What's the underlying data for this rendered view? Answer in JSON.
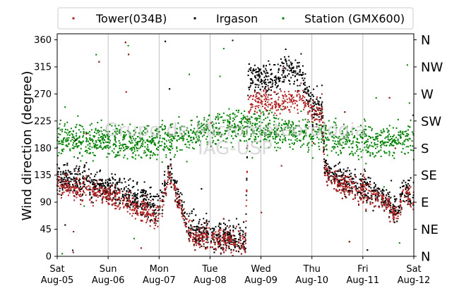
{
  "chart_data": {
    "type": "scatter",
    "title": "",
    "xlabel": "",
    "ylabel": "Wind direction (degree)",
    "ylim": [
      0,
      370
    ],
    "yticks": [
      0,
      45,
      90,
      135,
      180,
      225,
      270,
      315,
      360
    ],
    "xlim": [
      "2017-08-05",
      "2017-08-12"
    ],
    "xticks": [
      {
        "day": "Sat",
        "date": "Aug-05"
      },
      {
        "day": "Sun",
        "date": "Aug-06"
      },
      {
        "day": "Mon",
        "date": "Aug-07"
      },
      {
        "day": "Tue",
        "date": "Aug-08"
      },
      {
        "day": "Wed",
        "date": "Aug-09"
      },
      {
        "day": "Thu",
        "date": "Aug-10"
      },
      {
        "day": "Fri",
        "date": "Aug-11"
      },
      {
        "day": "Sat",
        "date": "Aug-12"
      }
    ],
    "compass_labels": [
      {
        "value": 0,
        "label": "N"
      },
      {
        "value": 45,
        "label": "NE"
      },
      {
        "value": 90,
        "label": "E"
      },
      {
        "value": 135,
        "label": "SE"
      },
      {
        "value": 180,
        "label": "S"
      },
      {
        "value": 225,
        "label": "SW"
      },
      {
        "value": 270,
        "label": "W"
      },
      {
        "value": 315,
        "label": "NW"
      },
      {
        "value": 360,
        "label": "N"
      }
    ],
    "grid": "vertical",
    "legend_position": "top",
    "watermark": [
      "Grupo de Micrometeorologia",
      "IAG-USP"
    ],
    "series": [
      {
        "name": "Tower(034B)",
        "color": "#b22222",
        "trend": [
          [
            0,
            120
          ],
          [
            0.5,
            110
          ],
          [
            0.9,
            105
          ],
          [
            1.2,
            95
          ],
          [
            1.6,
            80
          ],
          [
            1.9,
            65
          ],
          [
            2.0,
            70
          ],
          [
            2.2,
            140
          ],
          [
            2.4,
            90
          ],
          [
            2.6,
            40
          ],
          [
            2.8,
            30
          ],
          [
            3.0,
            30
          ],
          [
            3.4,
            25
          ],
          [
            3.7,
            20
          ],
          [
            3.75,
            255
          ],
          [
            4.0,
            260
          ],
          [
            4.3,
            258
          ],
          [
            4.5,
            255
          ],
          [
            4.8,
            260
          ],
          [
            4.9,
            250
          ],
          [
            5.0,
            235
          ],
          [
            5.2,
            240
          ],
          [
            5.25,
            140
          ],
          [
            5.6,
            120
          ],
          [
            6.0,
            105
          ],
          [
            6.3,
            100
          ],
          [
            6.5,
            80
          ],
          [
            6.7,
            65
          ],
          [
            6.8,
            110
          ],
          [
            7.0,
            85
          ]
        ]
      },
      {
        "name": "Irgason",
        "color": "#000000",
        "trend": [
          [
            0,
            130
          ],
          [
            0.5,
            125
          ],
          [
            0.9,
            115
          ],
          [
            1.2,
            110
          ],
          [
            1.6,
            95
          ],
          [
            1.9,
            80
          ],
          [
            2.0,
            85
          ],
          [
            2.2,
            145
          ],
          [
            2.4,
            100
          ],
          [
            2.6,
            45
          ],
          [
            2.8,
            40
          ],
          [
            3.0,
            35
          ],
          [
            3.4,
            30
          ],
          [
            3.7,
            25
          ],
          [
            3.75,
            300
          ],
          [
            4.0,
            295
          ],
          [
            4.3,
            300
          ],
          [
            4.5,
            310
          ],
          [
            4.8,
            300
          ],
          [
            4.9,
            270
          ],
          [
            5.0,
            250
          ],
          [
            5.2,
            245
          ],
          [
            5.25,
            145
          ],
          [
            5.6,
            125
          ],
          [
            6.0,
            110
          ],
          [
            6.3,
            105
          ],
          [
            6.5,
            85
          ],
          [
            6.7,
            75
          ],
          [
            6.8,
            115
          ],
          [
            7.0,
            95
          ]
        ]
      },
      {
        "name": "Station (GMX600)",
        "color": "#008000",
        "trend": [
          [
            0,
            195
          ],
          [
            1.0,
            190
          ],
          [
            2.0,
            190
          ],
          [
            2.5,
            200
          ],
          [
            3.0,
            210
          ],
          [
            3.5,
            215
          ],
          [
            4.0,
            215
          ],
          [
            4.5,
            205
          ],
          [
            5.0,
            200
          ],
          [
            6.0,
            190
          ],
          [
            7.0,
            195
          ]
        ]
      }
    ]
  }
}
